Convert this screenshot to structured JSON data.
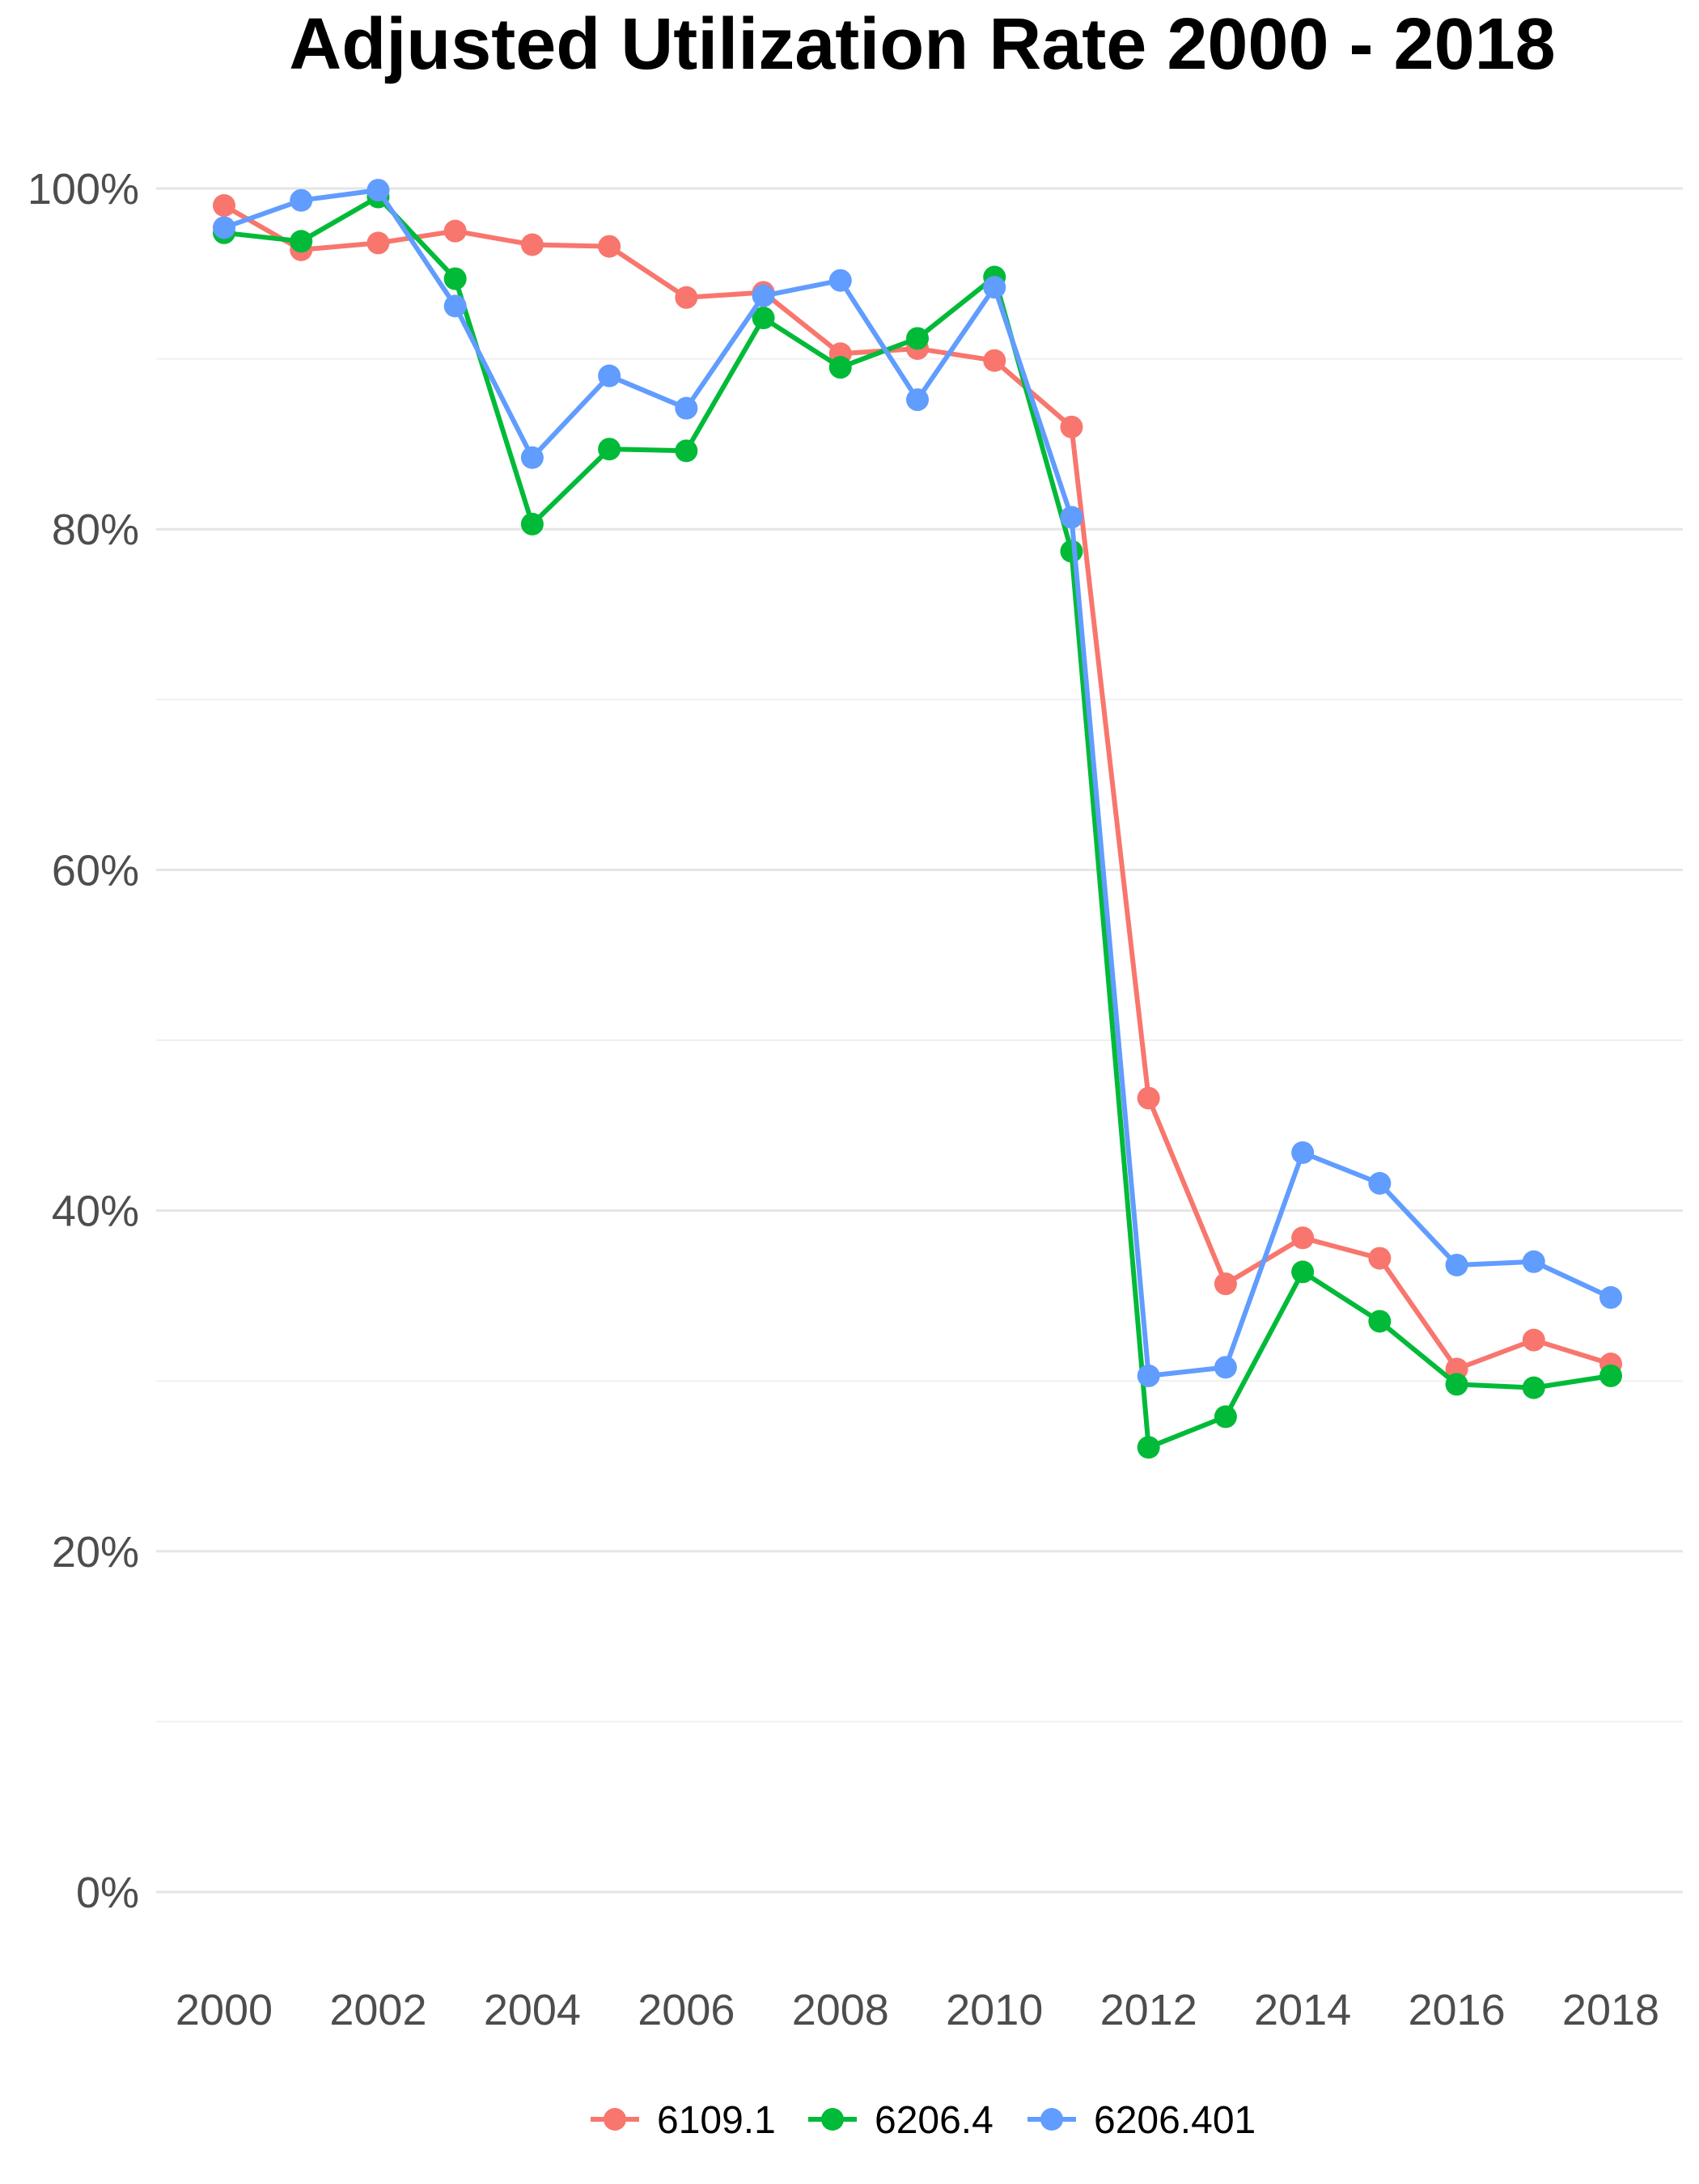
{
  "chart_data": {
    "type": "line",
    "title": "Adjusted Utilization Rate 2000 - 2018",
    "xlabel": "",
    "ylabel": "",
    "x": [
      2000,
      2001,
      2002,
      2003,
      2004,
      2005,
      2006,
      2007,
      2008,
      2009,
      2010,
      2011,
      2012,
      2013,
      2014,
      2015,
      2016,
      2017,
      2018
    ],
    "x_ticks": [
      2000,
      2002,
      2004,
      2006,
      2008,
      2010,
      2012,
      2014,
      2016,
      2018
    ],
    "x_tick_labels": [
      "2000",
      "2002",
      "2004",
      "2006",
      "2008",
      "2010",
      "2012",
      "2014",
      "2016",
      "2018"
    ],
    "xlim": [
      2000,
      2018
    ],
    "ylim": [
      0,
      100
    ],
    "y_ticks": [
      0,
      20,
      40,
      60,
      80,
      100
    ],
    "y_tick_labels": [
      "0%",
      "20%",
      "40%",
      "60%",
      "80%",
      "100%"
    ],
    "y_minor_ticks": [
      10,
      30,
      50,
      70,
      90
    ],
    "grid": true,
    "legend_position": "bottom",
    "series": [
      {
        "name": "6109.1",
        "color": "#F8766D",
        "values": [
          99.0,
          96.4,
          96.8,
          97.5,
          96.7,
          96.6,
          93.6,
          93.9,
          90.3,
          90.6,
          89.9,
          86.0,
          46.6,
          35.7,
          38.4,
          37.2,
          30.7,
          32.4,
          31.0
        ]
      },
      {
        "name": "6206.4",
        "color": "#00BA38",
        "values": [
          97.4,
          96.9,
          99.5,
          94.7,
          80.3,
          84.7,
          84.6,
          92.4,
          89.5,
          91.2,
          94.8,
          78.7,
          26.1,
          27.9,
          36.4,
          33.5,
          29.8,
          29.6,
          30.3
        ]
      },
      {
        "name": "6206.401",
        "color": "#619CFF",
        "values": [
          97.7,
          99.3,
          99.9,
          93.1,
          84.2,
          89.0,
          87.1,
          93.7,
          94.6,
          87.6,
          94.2,
          80.7,
          30.3,
          30.8,
          43.4,
          41.6,
          36.8,
          37.0,
          34.9
        ]
      }
    ]
  }
}
